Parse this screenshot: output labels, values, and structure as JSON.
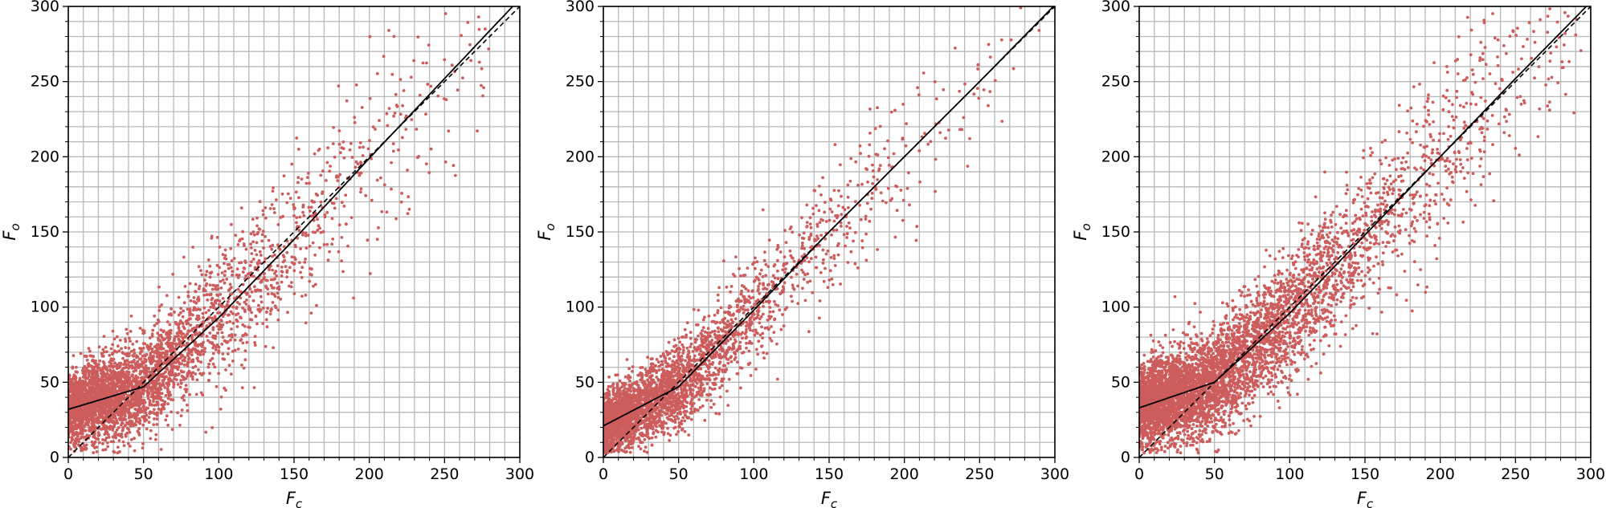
{
  "chart_data": [
    {
      "type": "scatter",
      "xlabel": "F",
      "xlabel_sub": "c",
      "ylabel": "F",
      "ylabel_sub": "o",
      "xlim": [
        0,
        300
      ],
      "ylim": [
        0,
        300
      ],
      "xticks": [
        0,
        50,
        100,
        150,
        200,
        250,
        300
      ],
      "yticks": [
        0,
        50,
        100,
        150,
        200,
        250,
        300
      ],
      "minor_grid_step": 10,
      "grid": true,
      "point_color": "#cd5c5c",
      "n_points": 3600,
      "spread": {
        "base_sd": 12,
        "sd_slope": 0.09,
        "x_scale": 60,
        "x_max": 280
      },
      "fit_curve": {
        "style": "solid",
        "intercept": 32,
        "points": [
          [
            0,
            32
          ],
          [
            50,
            47
          ],
          [
            100,
            93
          ],
          [
            150,
            145
          ],
          [
            200,
            199
          ],
          [
            250,
            252
          ],
          [
            300,
            305
          ]
        ]
      },
      "identity_line": {
        "style": "dashed",
        "points": [
          [
            0,
            0
          ],
          [
            300,
            300
          ]
        ]
      }
    },
    {
      "type": "scatter",
      "xlabel": "F",
      "xlabel_sub": "c",
      "ylabel": "F",
      "ylabel_sub": "o",
      "xlim": [
        0,
        300
      ],
      "ylim": [
        0,
        300
      ],
      "xticks": [
        0,
        50,
        100,
        150,
        200,
        250,
        300
      ],
      "yticks": [
        0,
        50,
        100,
        150,
        200,
        250,
        300
      ],
      "minor_grid_step": 10,
      "grid": true,
      "point_color": "#cd5c5c",
      "n_points": 3200,
      "spread": {
        "base_sd": 10,
        "sd_slope": 0.07,
        "x_scale": 50,
        "x_max": 290
      },
      "fit_curve": {
        "style": "solid",
        "intercept": 21,
        "points": [
          [
            0,
            21
          ],
          [
            50,
            47
          ],
          [
            100,
            98
          ],
          [
            150,
            150
          ],
          [
            200,
            200
          ],
          [
            250,
            250
          ],
          [
            300,
            301
          ]
        ]
      },
      "identity_line": {
        "style": "dashed",
        "points": [
          [
            0,
            0
          ],
          [
            300,
            300
          ]
        ]
      }
    },
    {
      "type": "scatter",
      "xlabel": "F",
      "xlabel_sub": "c",
      "ylabel": "F",
      "ylabel_sub": "o",
      "xlim": [
        0,
        300
      ],
      "ylim": [
        0,
        300
      ],
      "xticks": [
        0,
        50,
        100,
        150,
        200,
        250,
        300
      ],
      "yticks": [
        0,
        50,
        100,
        150,
        200,
        250,
        300
      ],
      "minor_grid_step": 10,
      "grid": true,
      "point_color": "#cd5c5c",
      "n_points": 5200,
      "spread": {
        "base_sd": 13,
        "sd_slope": 0.08,
        "x_scale": 70,
        "x_max": 295
      },
      "fit_curve": {
        "style": "solid",
        "intercept": 33,
        "points": [
          [
            0,
            33
          ],
          [
            50,
            50
          ],
          [
            100,
            96
          ],
          [
            150,
            148
          ],
          [
            200,
            200
          ],
          [
            250,
            252
          ],
          [
            300,
            303
          ]
        ]
      },
      "identity_line": {
        "style": "dashed",
        "points": [
          [
            0,
            0
          ],
          [
            300,
            300
          ]
        ]
      }
    }
  ]
}
